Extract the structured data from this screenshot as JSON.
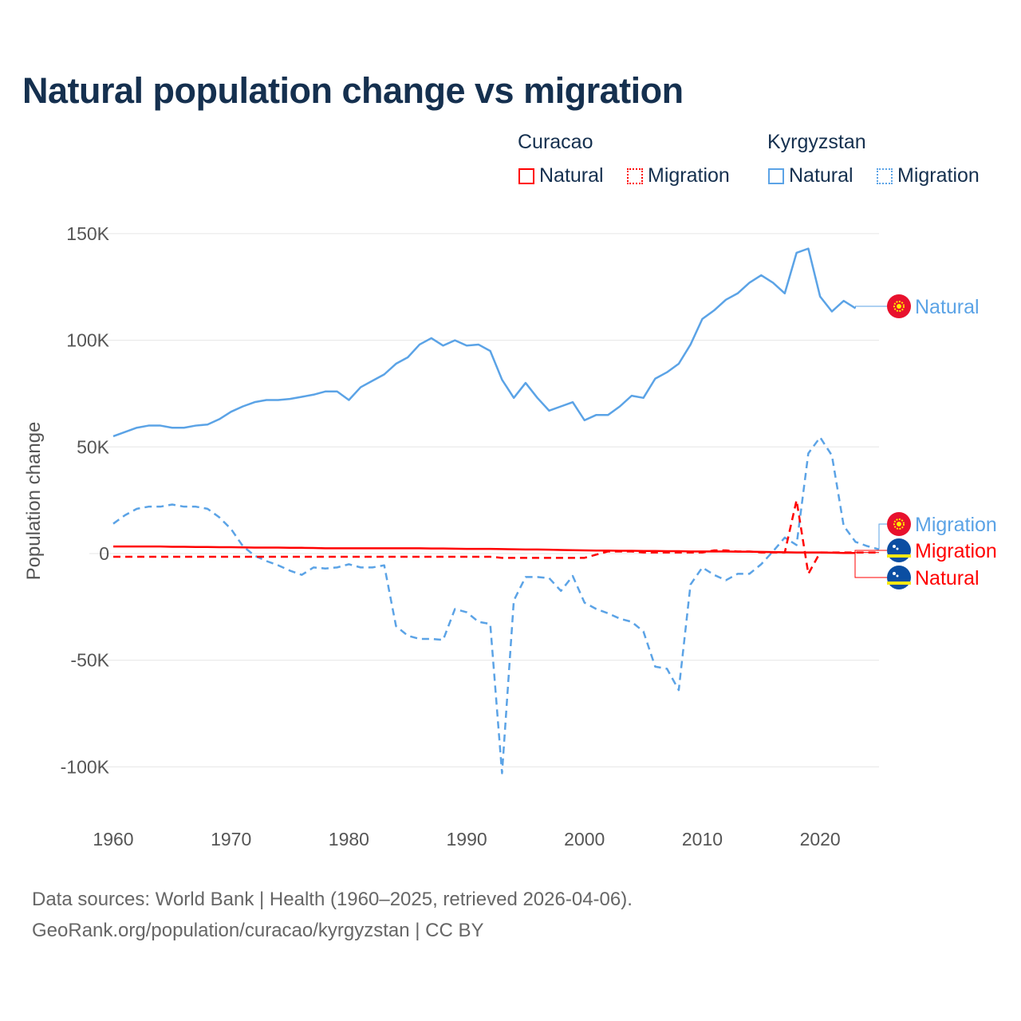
{
  "title": "Natural population change vs migration",
  "legend": {
    "groups": [
      {
        "name": "Curacao",
        "color": "#ff0000",
        "items": [
          "Natural",
          "Migration"
        ]
      },
      {
        "name": "Kyrgyzstan",
        "color": "#5ba3e6",
        "items": [
          "Natural",
          "Migration"
        ]
      }
    ]
  },
  "footer": {
    "line1": "Data sources: World Bank | Health (1960–2025, retrieved 2026-04-06).",
    "line2": "GeoRank.org/population/curacao/kyrgyzstan | CC BY"
  },
  "chart_data": {
    "type": "line",
    "title": "Natural population change vs migration",
    "ylabel": "Population change",
    "xlabel": "",
    "xlim": [
      1960,
      2025
    ],
    "ylim": [
      -100000,
      150000
    ],
    "x_ticks": [
      "1960",
      "1970",
      "1980",
      "1990",
      "2000",
      "2010",
      "2020"
    ],
    "y_ticks": [
      {
        "value": 150000,
        "label": "150K"
      },
      {
        "value": 100000,
        "label": "100K"
      },
      {
        "value": 50000,
        "label": "50K"
      },
      {
        "value": 0,
        "label": "0"
      },
      {
        "value": -50000,
        "label": "-50K"
      },
      {
        "value": -100000,
        "label": "-100K"
      }
    ],
    "grid": true,
    "series": [
      {
        "name": "Kyrgyzstan Natural",
        "country": "Kyrgyzstan",
        "label": "Natural",
        "color": "#5ba3e6",
        "dash": false,
        "start": 1960,
        "values": [
          55,
          57,
          59,
          60,
          60,
          59,
          59,
          60,
          60.5,
          63,
          66.5,
          69,
          71,
          72,
          72,
          72.5,
          73.5,
          74.5,
          76,
          76,
          72,
          78,
          81,
          84,
          89,
          92,
          98,
          101,
          97.5,
          100,
          97.5,
          98,
          95,
          81.5,
          73,
          80,
          73,
          67,
          69,
          71,
          62.5,
          65,
          65,
          69,
          74,
          73,
          82,
          85,
          89,
          98,
          110,
          114,
          119,
          122,
          127,
          130.5,
          127,
          122,
          141,
          143,
          120.5,
          113.5,
          118.5,
          115
        ]
      },
      {
        "name": "Kyrgyzstan Migration",
        "country": "Kyrgyzstan",
        "label": "Migration",
        "color": "#5ba3e6",
        "dash": true,
        "start": 1960,
        "values": [
          14,
          18,
          21,
          22,
          22,
          23,
          22,
          22,
          21,
          17,
          11.5,
          3.5,
          -1,
          -3.5,
          -5.5,
          -8,
          -10,
          -6.5,
          -7,
          -6.5,
          -5,
          -6.5,
          -6.5,
          -5.5,
          -34,
          -38.5,
          -40,
          -40,
          -40.5,
          -26,
          -27.5,
          -32,
          -33,
          -103,
          -22,
          -11,
          -11,
          -11.5,
          -17.5,
          -10.5,
          -23,
          -26,
          -28,
          -30.5,
          -32,
          -36.5,
          -53,
          -54,
          -64,
          -14.5,
          -6.5,
          -10,
          -12.5,
          -9.5,
          -9.5,
          -5,
          1,
          7.5,
          4,
          47,
          54.5,
          46,
          13,
          5.5,
          3.5,
          2
        ]
      },
      {
        "name": "Curacao Migration",
        "country": "Curacao",
        "label": "Migration",
        "color": "#ff0000",
        "dash": true,
        "start": 1960,
        "values": [
          -1.5,
          -1.5,
          -1.5,
          -1.5,
          -1.5,
          -1.5,
          -1.5,
          -1.5,
          -1.5,
          -1.5,
          -1.5,
          -1.5,
          -1.5,
          -1.5,
          -1.5,
          -1.5,
          -1.5,
          -1.5,
          -1.5,
          -1.5,
          -1.5,
          -1.5,
          -1.5,
          -1.5,
          -1.5,
          -1.5,
          -1.5,
          -1.5,
          -1.5,
          -1.5,
          -1.5,
          -1.5,
          -1.5,
          -2,
          -2,
          -2,
          -2,
          -2,
          -2,
          -2,
          -2,
          -0.5,
          1,
          1,
          1,
          0.5,
          0.5,
          0.5,
          0.5,
          0.5,
          0.5,
          1.5,
          1.5,
          1,
          1,
          0.5,
          0.5,
          0.5,
          25,
          -9.5,
          0.5,
          0.5,
          0.5,
          0.5,
          0.5,
          0.5
        ]
      },
      {
        "name": "Curacao Natural",
        "country": "Curacao",
        "label": "Natural",
        "color": "#ff0000",
        "dash": false,
        "start": 1960,
        "values": [
          3.3,
          3.3,
          3.3,
          3.3,
          3.3,
          3.2,
          3.2,
          3.1,
          3.1,
          3,
          3,
          2.9,
          2.8,
          2.8,
          2.8,
          2.7,
          2.7,
          2.6,
          2.5,
          2.5,
          2.5,
          2.5,
          2.5,
          2.5,
          2.5,
          2.5,
          2.5,
          2.4,
          2.4,
          2.3,
          2.2,
          2.2,
          2.2,
          2.1,
          2,
          1.9,
          1.9,
          1.8,
          1.7,
          1.6,
          1.5,
          1.4,
          1.4,
          1.3,
          1.3,
          1.2,
          1.2,
          1.1,
          1.1,
          1,
          1,
          1,
          1,
          0.9,
          0.9,
          0.8,
          0.7,
          0.6,
          0.5,
          0.5,
          0.5,
          0.4,
          0.3,
          0.3
        ]
      }
    ],
    "value_unit": "thousands"
  }
}
